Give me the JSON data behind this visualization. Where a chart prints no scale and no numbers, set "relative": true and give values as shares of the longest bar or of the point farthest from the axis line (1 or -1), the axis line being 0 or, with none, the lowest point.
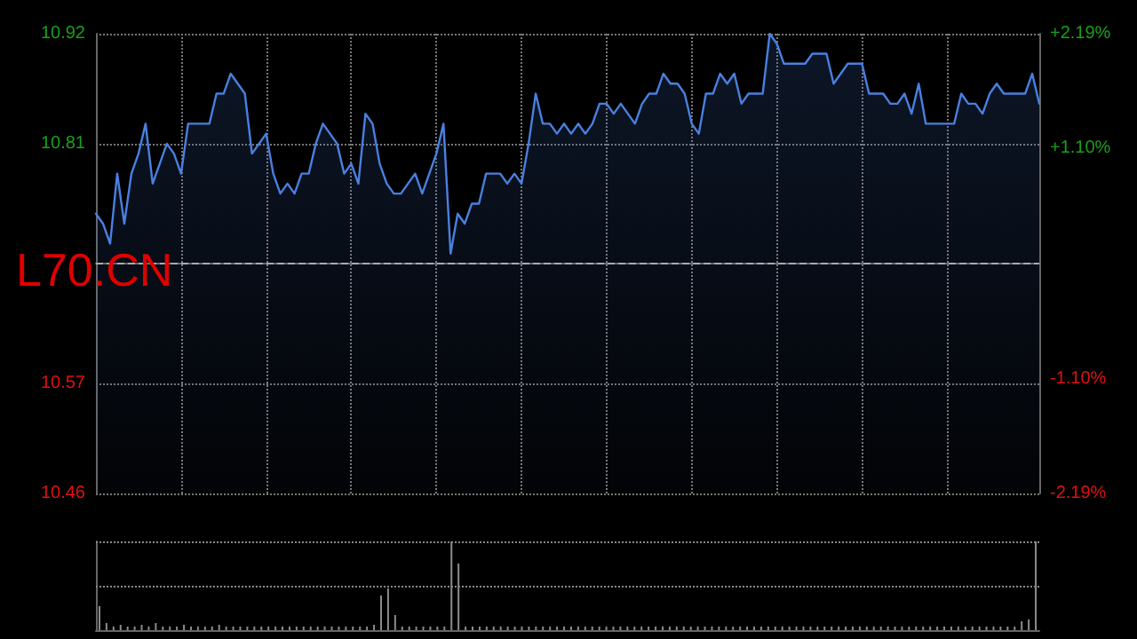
{
  "chart_data": [
    {
      "type": "area",
      "title": "L70.CN",
      "categories": [
        null,
        null,
        null,
        null,
        null,
        null,
        null,
        null,
        null,
        null,
        null,
        null,
        null,
        null,
        null,
        null,
        null,
        null,
        null,
        null,
        null,
        null,
        null,
        null,
        null,
        null,
        null,
        null,
        null,
        null,
        null,
        null,
        null,
        null,
        null,
        null,
        null,
        null,
        null,
        null,
        null,
        null,
        null,
        null,
        null,
        null,
        null,
        null,
        null,
        null,
        null,
        null,
        null,
        null,
        null,
        null,
        null,
        null,
        null,
        null,
        null,
        null,
        null,
        null,
        null,
        null,
        null,
        null,
        null,
        null,
        null,
        null,
        null,
        null,
        null,
        null,
        null,
        null,
        null,
        null,
        null,
        null,
        null,
        null,
        null,
        null,
        null,
        null,
        null,
        null,
        null,
        null,
        null,
        null,
        null,
        null,
        null,
        null,
        null,
        null,
        null,
        null,
        null,
        null,
        null,
        null,
        null,
        null,
        null,
        null,
        null,
        null,
        null,
        null,
        null,
        null,
        null,
        null,
        null,
        null,
        null,
        null,
        null,
        null,
        null,
        null,
        null,
        null,
        null,
        null,
        null,
        null,
        null,
        null
      ],
      "series": [
        {
          "color": "#4a80e0",
          "values": [
            10.74,
            10.73,
            10.71,
            10.78,
            10.73,
            10.78,
            10.8,
            10.83,
            10.77,
            10.79,
            10.81,
            10.8,
            10.78,
            10.83,
            10.83,
            10.83,
            10.83,
            10.86,
            10.86,
            10.88,
            10.87,
            10.86,
            10.8,
            10.81,
            10.82,
            10.78,
            10.76,
            10.77,
            10.76,
            10.78,
            10.78,
            10.81,
            10.83,
            10.82,
            10.81,
            10.78,
            10.79,
            10.77,
            10.84,
            10.83,
            10.79,
            10.77,
            10.76,
            10.76,
            10.77,
            10.78,
            10.76,
            10.78,
            10.8,
            10.83,
            10.7,
            10.74,
            10.73,
            10.75,
            10.75,
            10.78,
            10.78,
            10.78,
            10.77,
            10.78,
            10.77,
            10.81,
            10.86,
            10.83,
            10.83,
            10.82,
            10.83,
            10.82,
            10.83,
            10.82,
            10.83,
            10.85,
            10.85,
            10.84,
            10.85,
            10.84,
            10.83,
            10.85,
            10.86,
            10.86,
            10.88,
            10.87,
            10.87,
            10.86,
            10.83,
            10.82,
            10.86,
            10.86,
            10.88,
            10.87,
            10.88,
            10.85,
            10.86,
            10.86,
            10.86,
            10.92,
            10.91,
            10.89,
            10.89,
            10.89,
            10.89,
            10.9,
            10.9,
            10.9,
            10.87,
            10.88,
            10.89,
            10.89,
            10.89,
            10.86,
            10.86,
            10.86,
            10.85,
            10.85,
            10.86,
            10.84,
            10.87,
            10.83,
            10.83,
            10.83,
            10.83,
            10.83,
            10.86,
            10.85,
            10.85,
            10.84,
            10.86,
            10.87,
            10.86,
            10.86,
            10.86,
            10.86,
            10.88,
            10.85
          ]
        }
      ],
      "ylim": [
        10.46,
        10.92
      ],
      "yticks": [
        10.46,
        10.57,
        10.81,
        10.92
      ],
      "y2lim": [
        -2.19,
        2.19
      ],
      "y2ticks": [
        {
          "value": -2.19,
          "label": "-2.19%"
        },
        {
          "value": -1.1,
          "label": "-1.10%"
        },
        {
          "value": 1.1,
          "label": "+1.10%"
        },
        {
          "value": 2.19,
          "label": "+2.19%"
        }
      ],
      "ref_lines": [
        {
          "axis": "y",
          "value": 10.69,
          "line_style": "dashed",
          "color": "#aaaaaa"
        }
      ],
      "grid": true,
      "line_style": "solid"
    },
    {
      "type": "bar",
      "relative": true,
      "categories": [
        null,
        null,
        null,
        null,
        null,
        null,
        null,
        null,
        null,
        null,
        null,
        null,
        null,
        null,
        null,
        null,
        null,
        null,
        null,
        null,
        null,
        null,
        null,
        null,
        null,
        null,
        null,
        null,
        null,
        null,
        null,
        null,
        null,
        null,
        null,
        null,
        null,
        null,
        null,
        null,
        null,
        null,
        null,
        null,
        null,
        null,
        null,
        null,
        null,
        null,
        null,
        null,
        null,
        null,
        null,
        null,
        null,
        null,
        null,
        null,
        null,
        null,
        null,
        null,
        null,
        null,
        null,
        null,
        null,
        null,
        null,
        null,
        null,
        null,
        null,
        null,
        null,
        null,
        null,
        null,
        null,
        null,
        null,
        null,
        null,
        null,
        null,
        null,
        null,
        null,
        null,
        null,
        null,
        null,
        null,
        null,
        null,
        null,
        null,
        null,
        null,
        null,
        null,
        null,
        null,
        null,
        null,
        null,
        null,
        null,
        null,
        null,
        null,
        null,
        null,
        null,
        null,
        null,
        null,
        null,
        null,
        null,
        null,
        null,
        null,
        null,
        null,
        null,
        null,
        null,
        null,
        null,
        null,
        null
      ],
      "series": [
        {
          "color": "#8c8c8c",
          "values": [
            0.27,
            0.08,
            0.04,
            0.06,
            0.04,
            0.04,
            0.06,
            0.04,
            0.08,
            0.04,
            0.04,
            0.04,
            0.06,
            0.04,
            0.04,
            0.04,
            0.04,
            0.06,
            0.04,
            0.04,
            0.04,
            0.04,
            0.04,
            0.04,
            0.04,
            0.04,
            0.04,
            0.04,
            0.04,
            0.04,
            0.04,
            0.04,
            0.04,
            0.04,
            0.04,
            0.04,
            0.04,
            0.04,
            0.04,
            0.06,
            0.39,
            0.47,
            0.17,
            0.04,
            0.04,
            0.04,
            0.04,
            0.04,
            0.04,
            0.04,
            1,
            0.75,
            0.04,
            0.04,
            0.04,
            0.04,
            0.04,
            0.04,
            0.04,
            0.04,
            0.04,
            0.04,
            0.04,
            0.04,
            0.04,
            0.04,
            0.04,
            0.04,
            0.04,
            0.04,
            0.04,
            0.04,
            0.04,
            0.04,
            0.04,
            0.04,
            0.04,
            0.04,
            0.04,
            0.04,
            0.04,
            0.04,
            0.04,
            0.04,
            0.04,
            0.04,
            0.04,
            0.04,
            0.04,
            0.04,
            0.04,
            0.04,
            0.04,
            0.04,
            0.04,
            0.04,
            0.04,
            0.04,
            0.04,
            0.04,
            0.04,
            0.04,
            0.04,
            0.04,
            0.04,
            0.04,
            0.04,
            0.04,
            0.04,
            0.04,
            0.04,
            0.04,
            0.04,
            0.04,
            0.04,
            0.04,
            0.04,
            0.04,
            0.04,
            0.04,
            0.04,
            0.04,
            0.04,
            0.04,
            0.04,
            0.04,
            0.04,
            0.04,
            0.04,
            0.04,
            0.04,
            0.1,
            0.12,
            1
          ]
        }
      ],
      "ref_lines": [
        {
          "axis": "y",
          "value": 0.5,
          "line_style": "dotted",
          "color": "#888888"
        },
        {
          "axis": "y",
          "value": 1,
          "line_style": "dotted",
          "color": "#888888"
        }
      ]
    }
  ]
}
